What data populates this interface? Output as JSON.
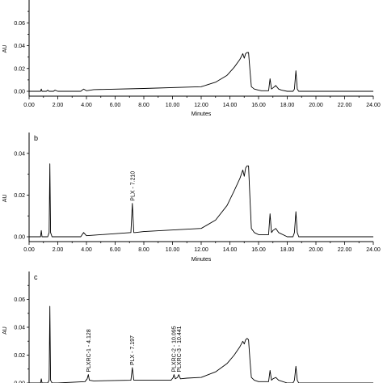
{
  "chart_data": [
    {
      "type": "line",
      "panel_label": "",
      "xlabel": "Minutes",
      "ylabel": "AU",
      "xlim": [
        0,
        24
      ],
      "ylim": [
        -0.005,
        0.08
      ],
      "x_ticks": [
        "0.00",
        "2.00",
        "4.00",
        "6.00",
        "8.00",
        "10.00",
        "12.00",
        "14.00",
        "16.00",
        "18.00",
        "20.00",
        "22.00",
        "24.00"
      ],
      "y_ticks": [
        "0.00",
        "0.02",
        "0.04",
        "0.06"
      ],
      "peak_labels": [],
      "series": [
        {
          "x": [
            0.0,
            0.8,
            0.85,
            0.9,
            1.2,
            1.3,
            1.4,
            1.7,
            1.8,
            2.0,
            2.1,
            3.6,
            3.8,
            4.0,
            4.5,
            8.0,
            12.0,
            13.0,
            13.8,
            14.3,
            14.7,
            14.9,
            15.0,
            15.1,
            15.2,
            15.3,
            15.4,
            15.5,
            15.7,
            16.0,
            16.2,
            16.7,
            16.8,
            16.9,
            17.0,
            17.2,
            17.4,
            17.6,
            18.0,
            18.4,
            18.5,
            18.6,
            18.7,
            18.8,
            19.5,
            21.0,
            24.0
          ],
          "y": [
            0.0,
            0.0,
            0.002,
            0.0,
            0.0,
            0.001,
            0.0,
            0.0,
            0.001,
            0.0,
            0.0,
            0.0,
            0.002,
            0.0005,
            0.0015,
            0.0025,
            0.004,
            0.008,
            0.014,
            0.021,
            0.028,
            0.033,
            0.029,
            0.033,
            0.034,
            0.034,
            0.018,
            0.004,
            0.002,
            0.001,
            0.0005,
            0.0005,
            0.011,
            0.002,
            0.003,
            0.005,
            0.002,
            0.001,
            0.0,
            0.0,
            0.002,
            0.018,
            0.002,
            0.0,
            0.0,
            0.0,
            0.0
          ]
        }
      ]
    },
    {
      "type": "line",
      "panel_label": "b",
      "xlabel": "Minutes",
      "ylabel": "AU",
      "xlim": [
        0,
        24
      ],
      "ylim": [
        -0.005,
        0.05
      ],
      "x_ticks": [
        "0.00",
        "2.00",
        "4.00",
        "6.00",
        "8.00",
        "10.00",
        "12.00",
        "14.00",
        "16.00",
        "18.00",
        "20.00",
        "22.00",
        "24.00"
      ],
      "y_ticks": [
        "0.00",
        "0.02",
        "0.04"
      ],
      "peak_labels": [
        {
          "x": 7.21,
          "text": "PLX - 7.210"
        }
      ],
      "series": [
        {
          "x": [
            0.0,
            0.8,
            0.85,
            0.9,
            1.3,
            1.4,
            1.45,
            1.5,
            1.6,
            2.0,
            3.6,
            3.8,
            4.0,
            7.1,
            7.2,
            7.3,
            7.4,
            8.0,
            12.0,
            13.0,
            13.8,
            14.3,
            14.7,
            14.9,
            15.0,
            15.1,
            15.2,
            15.3,
            15.4,
            15.5,
            15.7,
            16.0,
            16.7,
            16.8,
            16.9,
            17.0,
            17.2,
            17.4,
            18.0,
            18.4,
            18.5,
            18.6,
            18.7,
            18.8,
            20.0,
            24.0
          ],
          "y": [
            0.0,
            0.0,
            0.003,
            0.0,
            0.0,
            0.002,
            0.035,
            0.002,
            0.0,
            0.0,
            0.0,
            0.002,
            0.0005,
            0.002,
            0.016,
            0.002,
            0.002,
            0.0025,
            0.004,
            0.008,
            0.015,
            0.022,
            0.028,
            0.032,
            0.029,
            0.033,
            0.034,
            0.034,
            0.018,
            0.004,
            0.002,
            0.001,
            0.001,
            0.011,
            0.002,
            0.003,
            0.004,
            0.002,
            0.0,
            0.0,
            0.002,
            0.012,
            0.002,
            0.0,
            0.0,
            0.0
          ]
        }
      ]
    },
    {
      "type": "line",
      "panel_label": "c",
      "xlabel": "",
      "ylabel": "AU",
      "xlim": [
        0,
        24
      ],
      "ylim": [
        -0.005,
        0.08
      ],
      "x_ticks": [],
      "y_ticks": [
        "0.00",
        "0.02",
        "0.04",
        "0.06"
      ],
      "peak_labels": [
        {
          "x": 4.128,
          "text": "PLXRC-1 - 4.128"
        },
        {
          "x": 7.197,
          "text": "PLX - 7.197"
        },
        {
          "x": 10.095,
          "text": "PLXRC-2 - 10.095"
        },
        {
          "x": 10.441,
          "text": "PLXRC-3 - 10.441"
        }
      ],
      "series": [
        {
          "x": [
            0.0,
            0.8,
            0.85,
            0.9,
            1.3,
            1.4,
            1.45,
            1.5,
            1.6,
            2.0,
            3.9,
            4.05,
            4.13,
            4.2,
            4.5,
            7.1,
            7.2,
            7.3,
            9.9,
            10.05,
            10.1,
            10.2,
            10.35,
            10.44,
            10.55,
            11.0,
            12.0,
            13.0,
            13.8,
            14.3,
            14.7,
            14.9,
            15.0,
            15.1,
            15.2,
            15.3,
            15.4,
            15.5,
            15.7,
            16.0,
            16.7,
            16.8,
            16.9,
            17.0,
            17.2,
            17.4,
            18.0,
            18.4,
            18.5,
            18.6,
            18.7,
            18.8,
            20.0,
            24.0
          ],
          "y": [
            0.0,
            0.0,
            0.003,
            0.0,
            0.0,
            0.002,
            0.055,
            0.002,
            0.0,
            0.0,
            0.001,
            0.003,
            0.006,
            0.002,
            0.0015,
            0.002,
            0.011,
            0.002,
            0.002,
            0.004,
            0.006,
            0.003,
            0.004,
            0.006,
            0.003,
            0.0035,
            0.004,
            0.008,
            0.014,
            0.02,
            0.026,
            0.03,
            0.028,
            0.031,
            0.032,
            0.031,
            0.016,
            0.004,
            0.002,
            0.001,
            0.001,
            0.009,
            0.002,
            0.003,
            0.004,
            0.002,
            0.0,
            0.0,
            0.002,
            0.012,
            0.002,
            0.0,
            0.0,
            0.0
          ]
        }
      ]
    }
  ]
}
